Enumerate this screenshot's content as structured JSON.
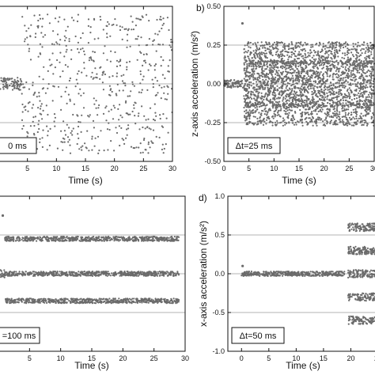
{
  "chart_data": [
    {
      "panel": "a",
      "panel_label": "",
      "type": "scatter",
      "xlabel": "Time (s)",
      "ylabel": "",
      "annotation": "0 ms",
      "xlim": [
        0,
        30
      ],
      "xticks": [
        5,
        10,
        15,
        20,
        25,
        30
      ],
      "ylim": [
        -0.5,
        0.5
      ],
      "yticks": [],
      "reference_lines": [
        -0.25,
        0,
        0.25
      ],
      "grid": false,
      "series": [
        {
          "segments": [
            {
              "x": [
                0,
                4
              ],
              "levels": [
                0
              ],
              "spread": 0.04
            },
            {
              "x": [
                4,
                30
              ],
              "levels": [
                0
              ],
              "spread": 0.45
            }
          ]
        }
      ]
    },
    {
      "panel": "b",
      "panel_label": "b)",
      "type": "scatter",
      "xlabel": "Time (s)",
      "ylabel": "z-axis acceleration (m/s²)",
      "annotation": "Δt=25 ms",
      "xlim": [
        0,
        30
      ],
      "xticks": [
        0,
        5,
        10,
        15,
        20,
        25,
        30
      ],
      "ylim": [
        -0.5,
        0.5
      ],
      "yticks": [
        -0.5,
        -0.25,
        0.0,
        0.25,
        0.5
      ],
      "ytick_labels": [
        "-0.50",
        "-0.25",
        "0.00",
        "0.25",
        "0.50"
      ],
      "reference_lines": [
        -0.25,
        0,
        0.25
      ],
      "grid": false,
      "outliers": [
        {
          "x": 3.7,
          "y": 0.39
        }
      ],
      "series": [
        {
          "segments": [
            {
              "x": [
                0,
                3.8
              ],
              "levels": [
                0
              ],
              "spread": 0.025
            },
            {
              "x": [
                4,
                30
              ],
              "levels": [
                -0.2,
                0.2
              ],
              "spread": 0.07
            },
            {
              "x": [
                4,
                30
              ],
              "levels": [
                -0.1,
                0.1
              ],
              "spread": 0.05
            },
            {
              "x": [
                4,
                30
              ],
              "levels": [
                0
              ],
              "spread": 0.05
            }
          ]
        }
      ]
    },
    {
      "panel": "c",
      "panel_label": "",
      "type": "scatter",
      "xlabel": "Time (s)",
      "ylabel": "",
      "annotation": "=100 ms",
      "xlim": [
        0,
        30
      ],
      "xticks": [
        5,
        10,
        15,
        20,
        25,
        30
      ],
      "ylim": [
        -1.0,
        1.0
      ],
      "yticks": [],
      "reference_lines": [
        -0.5,
        0,
        0.5
      ],
      "grid": false,
      "outliers": [
        {
          "x": 0.7,
          "y": 0.75
        }
      ],
      "series": [
        {
          "segments": [
            {
              "x": [
                0,
                1
              ],
              "levels": [
                0
              ],
              "spread": 0.05
            },
            {
              "x": [
                1,
                29
              ],
              "levels": [
                -0.35,
                0,
                0.45
              ],
              "spread": 0.03
            }
          ]
        }
      ]
    },
    {
      "panel": "d",
      "panel_label": "d)",
      "type": "scatter",
      "xlabel": "Time (s)",
      "ylabel": "x-axis acceleration (m/s²)",
      "annotation": "Δt=50 ms",
      "xlim": [
        -2.5,
        25
      ],
      "xticks": [
        0,
        5,
        10,
        15,
        20,
        25
      ],
      "ylim": [
        -1.0,
        1.0
      ],
      "yticks": [
        -1.0,
        -0.5,
        0.0,
        0.5,
        1.0
      ],
      "ytick_labels": [
        "-1.0",
        "-0.5",
        "0.0",
        "0.5",
        "1.0"
      ],
      "reference_lines": [
        -0.5,
        0,
        0.5
      ],
      "grid": false,
      "outliers": [
        {
          "x": 0.2,
          "y": 0.1
        }
      ],
      "series": [
        {
          "segments": [
            {
              "x": [
                0,
                19
              ],
              "levels": [
                0
              ],
              "spread": 0.03
            },
            {
              "x": [
                19.5,
                25
              ],
              "levels": [
                -0.6,
                -0.3,
                0,
                0.3,
                0.6
              ],
              "spread": 0.05
            }
          ]
        }
      ]
    }
  ]
}
